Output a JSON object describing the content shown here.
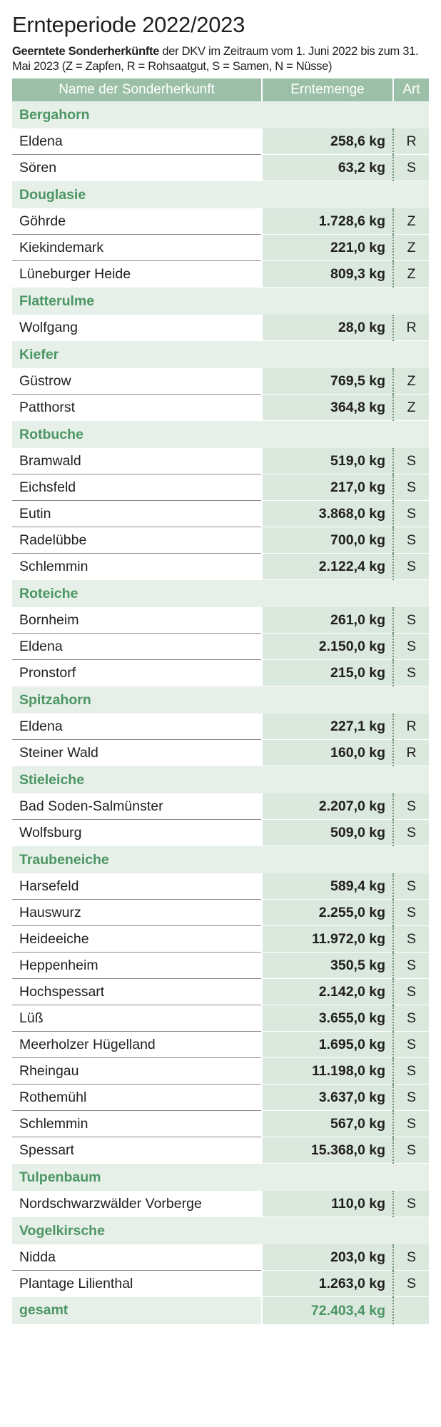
{
  "title": "Ernteperiode 2022/2023",
  "subtitle_bold": "Geerntete Sonderherkünfte",
  "subtitle_rest": " der DKV im Zeitraum vom 1. Juni 2022 bis zum 31. Mai 2023 (Z = Zapfen, R = Rohsaatgut, S = Samen, N = Nüsse)",
  "table": {
    "headers": [
      "Name der Sonderherkunft",
      "Erntemenge",
      "Art"
    ],
    "groups": [
      {
        "name": "Bergahorn",
        "items": [
          {
            "name": "Eldena",
            "qty": "258,6 kg",
            "art": "R"
          },
          {
            "name": "Sören",
            "qty": "63,2 kg",
            "art": "S"
          }
        ]
      },
      {
        "name": "Douglasie",
        "items": [
          {
            "name": "Göhrde",
            "qty": "1.728,6 kg",
            "art": "Z"
          },
          {
            "name": "Kiekindemark",
            "qty": "221,0 kg",
            "art": "Z"
          },
          {
            "name": "Lüneburger Heide",
            "qty": "809,3 kg",
            "art": "Z"
          }
        ]
      },
      {
        "name": "Flatterulme",
        "items": [
          {
            "name": "Wolfgang",
            "qty": "28,0 kg",
            "art": "R"
          }
        ]
      },
      {
        "name": "Kiefer",
        "items": [
          {
            "name": "Güstrow",
            "qty": "769,5 kg",
            "art": "Z"
          },
          {
            "name": "Patthorst",
            "qty": "364,8 kg",
            "art": "Z"
          }
        ]
      },
      {
        "name": "Rotbuche",
        "items": [
          {
            "name": "Bramwald",
            "qty": "519,0 kg",
            "art": "S"
          },
          {
            "name": "Eichsfeld",
            "qty": "217,0 kg",
            "art": "S"
          },
          {
            "name": "Eutin",
            "qty": "3.868,0 kg",
            "art": "S"
          },
          {
            "name": "Radelübbe",
            "qty": "700,0 kg",
            "art": "S"
          },
          {
            "name": "Schlemmin",
            "qty": "2.122,4 kg",
            "art": "S"
          }
        ]
      },
      {
        "name": "Roteiche",
        "items": [
          {
            "name": "Bornheim",
            "qty": "261,0 kg",
            "art": "S"
          },
          {
            "name": "Eldena",
            "qty": "2.150,0 kg",
            "art": "S"
          },
          {
            "name": "Pronstorf",
            "qty": "215,0 kg",
            "art": "S"
          }
        ]
      },
      {
        "name": "Spitzahorn",
        "items": [
          {
            "name": "Eldena",
            "qty": "227,1 kg",
            "art": "R"
          },
          {
            "name": "Steiner Wald",
            "qty": "160,0 kg",
            "art": "R"
          }
        ]
      },
      {
        "name": "Stieleiche",
        "items": [
          {
            "name": "Bad Soden-Salmünster",
            "qty": "2.207,0 kg",
            "art": "S"
          },
          {
            "name": "Wolfsburg",
            "qty": "509,0 kg",
            "art": "S"
          }
        ]
      },
      {
        "name": "Traubeneiche",
        "items": [
          {
            "name": "Harsefeld",
            "qty": "589,4 kg",
            "art": "S"
          },
          {
            "name": "Hauswurz",
            "qty": "2.255,0 kg",
            "art": "S"
          },
          {
            "name": "Heideeiche",
            "qty": "11.972,0 kg",
            "art": "S"
          },
          {
            "name": "Heppenheim",
            "qty": "350,5 kg",
            "art": "S"
          },
          {
            "name": "Hochspessart",
            "qty": "2.142,0 kg",
            "art": "S"
          },
          {
            "name": "Lüß",
            "qty": "3.655,0 kg",
            "art": "S"
          },
          {
            "name": "Meerholzer Hügelland",
            "qty": "1.695,0 kg",
            "art": "S"
          },
          {
            "name": "Rheingau",
            "qty": "11.198,0 kg",
            "art": "S"
          },
          {
            "name": "Rothemühl",
            "qty": "3.637,0 kg",
            "art": "S"
          },
          {
            "name": "Schlemmin",
            "qty": "567,0 kg",
            "art": "S"
          },
          {
            "name": "Spessart",
            "qty": "15.368,0 kg",
            "art": "S"
          }
        ]
      },
      {
        "name": "Tulpenbaum",
        "items": [
          {
            "name": "Nordschwarzwälder Vorberge",
            "qty": "110,0 kg",
            "art": "S"
          }
        ]
      },
      {
        "name": "Vogelkirsche",
        "items": [
          {
            "name": "Nidda",
            "qty": "203,0 kg",
            "art": "S"
          },
          {
            "name": "Plantage Lilienthal",
            "qty": "1.263,0 kg",
            "art": "S"
          }
        ]
      }
    ],
    "total_label": "gesamt",
    "total_qty": "72.403,4 kg"
  }
}
